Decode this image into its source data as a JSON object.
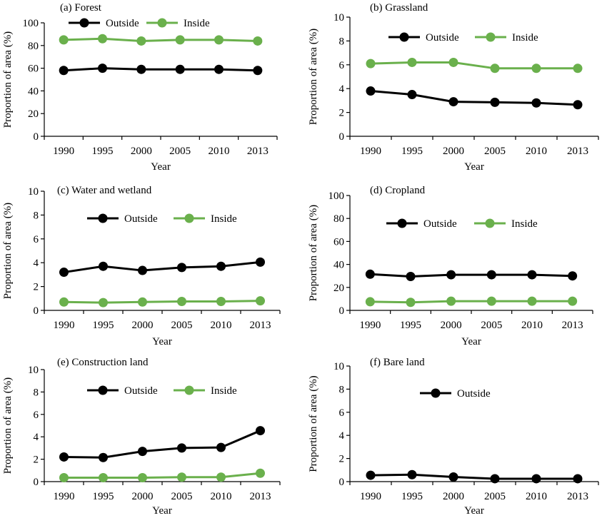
{
  "colors": {
    "outside": "#000000",
    "inside": "#6ab04c"
  },
  "chart_data": [
    {
      "type": "line",
      "title": "(a) Forest",
      "xlabel": "Year",
      "ylabel": "Proportion of area (%)",
      "categories": [
        "1990",
        "1995",
        "2000",
        "2005",
        "2010",
        "2013"
      ],
      "ylim": [
        0,
        100
      ],
      "yticks": [
        "0",
        "20",
        "40",
        "60",
        "80",
        "100"
      ],
      "legend": "top-center",
      "series": [
        {
          "name": "Outside",
          "values": [
            58,
            60,
            59,
            59,
            59,
            58
          ]
        },
        {
          "name": "Inside",
          "values": [
            85,
            86,
            84,
            85,
            85,
            84
          ]
        }
      ]
    },
    {
      "type": "line",
      "title": "(b) Grassland",
      "xlabel": "Year",
      "ylabel": "Proportion of area (%)",
      "categories": [
        "1990",
        "1995",
        "2000",
        "2005",
        "2010",
        "2013"
      ],
      "ylim": [
        0,
        10
      ],
      "yticks": [
        "0",
        "2",
        "4",
        "6",
        "8",
        "10"
      ],
      "legend": "top-center",
      "series": [
        {
          "name": "Outside",
          "values": [
            3.8,
            3.5,
            2.9,
            2.85,
            2.8,
            2.65
          ]
        },
        {
          "name": "Inside",
          "values": [
            6.1,
            6.2,
            6.2,
            5.7,
            5.7,
            5.7
          ]
        }
      ]
    },
    {
      "type": "line",
      "title": "(c) Water and wetland",
      "xlabel": "Year",
      "ylabel": "Proportion of area (%)",
      "categories": [
        "1990",
        "1995",
        "2000",
        "2005",
        "2010",
        "2013"
      ],
      "ylim": [
        0,
        10
      ],
      "yticks": [
        "0",
        "2",
        "4",
        "6",
        "8",
        "10"
      ],
      "legend": "top-center",
      "series": [
        {
          "name": "Outside",
          "values": [
            3.2,
            3.7,
            3.35,
            3.6,
            3.7,
            4.05
          ]
        },
        {
          "name": "Inside",
          "values": [
            0.7,
            0.65,
            0.7,
            0.75,
            0.75,
            0.8
          ]
        }
      ]
    },
    {
      "type": "line",
      "title": "(d) Cropland",
      "xlabel": "Year",
      "ylabel": "Proportion of area (%)",
      "categories": [
        "1990",
        "1995",
        "2000",
        "2005",
        "2010",
        "2013"
      ],
      "ylim": [
        0,
        100
      ],
      "yticks": [
        "0",
        "20",
        "40",
        "60",
        "80",
        "100"
      ],
      "legend": "top-center",
      "series": [
        {
          "name": "Outside",
          "values": [
            31.5,
            29.5,
            31,
            31,
            31,
            30
          ]
        },
        {
          "name": "Inside",
          "values": [
            7.5,
            7,
            8,
            8,
            8,
            8
          ]
        }
      ]
    },
    {
      "type": "line",
      "title": "(e) Construction land",
      "xlabel": "Year",
      "ylabel": "Proportion of area (%)",
      "categories": [
        "1990",
        "1995",
        "2000",
        "2005",
        "2010",
        "2013"
      ],
      "ylim": [
        0,
        10
      ],
      "yticks": [
        "0",
        "2",
        "4",
        "6",
        "8",
        "10"
      ],
      "legend": "top-center",
      "series": [
        {
          "name": "Outside",
          "values": [
            2.2,
            2.15,
            2.7,
            3,
            3.05,
            4.55
          ]
        },
        {
          "name": "Inside",
          "values": [
            0.35,
            0.35,
            0.35,
            0.4,
            0.4,
            0.75
          ]
        }
      ]
    },
    {
      "type": "line",
      "title": "(f) Bare land",
      "xlabel": "Year",
      "ylabel": "Proportion of area (%)",
      "categories": [
        "1990",
        "1995",
        "2000",
        "2005",
        "2010",
        "2013"
      ],
      "ylim": [
        0,
        10
      ],
      "yticks": [
        "0",
        "2",
        "4",
        "6",
        "8",
        "10"
      ],
      "legend": "top-center",
      "series": [
        {
          "name": "Outside",
          "values": [
            0.55,
            0.6,
            0.4,
            0.25,
            0.25,
            0.25
          ]
        }
      ]
    }
  ]
}
